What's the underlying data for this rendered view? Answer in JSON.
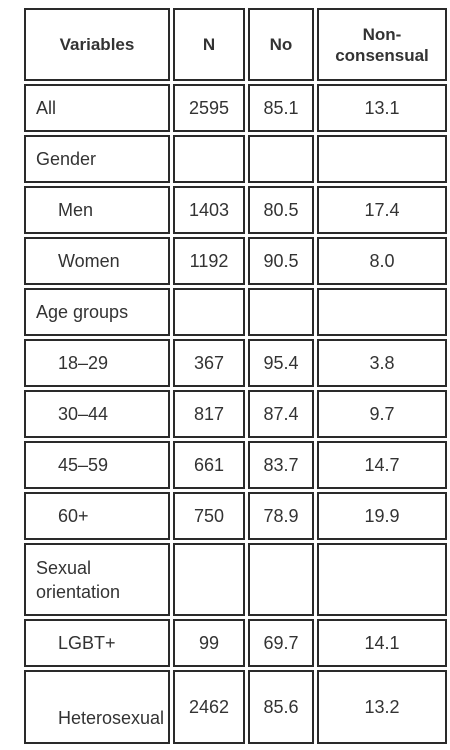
{
  "table": {
    "header": [
      "Variables",
      "N",
      "No",
      "Non-consensual"
    ],
    "rows": [
      [
        "All",
        "2595",
        "85.1",
        "13.1"
      ],
      [
        "Gender"
      ],
      [
        "Men",
        "1403",
        "80.5",
        "17.4"
      ],
      [
        "Women",
        "1192",
        "90.5",
        "8.0"
      ],
      [
        "Age groups"
      ],
      [
        "18–29",
        "367",
        "95.4",
        "3.8"
      ],
      [
        "30–44",
        "817",
        "87.4",
        "9.7"
      ],
      [
        "45–59",
        "661",
        "83.7",
        "14.7"
      ],
      [
        "60+",
        "750",
        "78.9",
        "19.9"
      ],
      [
        "Sexual orientation"
      ],
      [
        "LGBT+",
        "99",
        "69.7",
        "14.1"
      ],
      [
        "Heterosexual",
        "2462",
        "85.6",
        "13.2"
      ]
    ]
  }
}
